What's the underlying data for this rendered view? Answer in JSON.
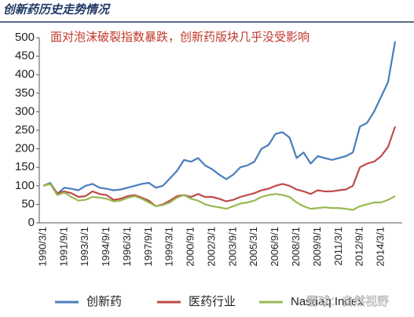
{
  "chart_data": {
    "type": "line",
    "title": "创新药历史走势情况",
    "annotation": "面对泡沫破裂指数暴跌，创新药版块几乎没受影响",
    "watermark": "雪球：自然视野",
    "categories": [
      "1990/3/1",
      null,
      null,
      "1991/9/1",
      null,
      null,
      "1993/3/1",
      null,
      null,
      "1994/9/1",
      null,
      null,
      "1996/3/1",
      null,
      null,
      "1997/9/1",
      null,
      null,
      "1999/3/1",
      null,
      null,
      "2000/9/1",
      null,
      null,
      "2002/3/1",
      null,
      null,
      "2003/9/1",
      null,
      null,
      "2005/3/1",
      null,
      null,
      "2006/9/1",
      null,
      null,
      "2008/3/1",
      null,
      null,
      "2009/9/1",
      null,
      null,
      "2011/3/1",
      null,
      null,
      "2012/9/1",
      null,
      null,
      "2014/3/1",
      null,
      null
    ],
    "series": [
      {
        "name": "创新药",
        "color": "#4a7ebb",
        "values": [
          100,
          108,
          78,
          95,
          92,
          88,
          100,
          105,
          95,
          92,
          88,
          90,
          95,
          100,
          105,
          108,
          95,
          100,
          120,
          140,
          170,
          165,
          175,
          155,
          145,
          130,
          118,
          130,
          150,
          155,
          165,
          200,
          210,
          240,
          245,
          230,
          175,
          190,
          160,
          180,
          175,
          170,
          175,
          180,
          190,
          260,
          270,
          300,
          340,
          380,
          490
        ]
      },
      {
        "name": "医药行业",
        "color": "#be4b48",
        "values": [
          100,
          105,
          80,
          85,
          80,
          70,
          72,
          85,
          78,
          75,
          62,
          65,
          72,
          75,
          68,
          60,
          45,
          50,
          60,
          72,
          75,
          70,
          78,
          70,
          70,
          65,
          58,
          62,
          70,
          75,
          80,
          88,
          92,
          100,
          105,
          100,
          90,
          85,
          78,
          88,
          85,
          85,
          88,
          90,
          100,
          150,
          160,
          165,
          180,
          205,
          260
        ]
      },
      {
        "name": "Nasdaq Index",
        "color": "#98b954",
        "values": [
          100,
          105,
          75,
          82,
          70,
          60,
          62,
          70,
          68,
          65,
          58,
          60,
          68,
          72,
          65,
          55,
          45,
          48,
          55,
          68,
          75,
          65,
          60,
          50,
          45,
          42,
          38,
          45,
          52,
          55,
          60,
          70,
          75,
          78,
          75,
          70,
          55,
          45,
          38,
          40,
          42,
          40,
          40,
          38,
          35,
          45,
          50,
          55,
          55,
          62,
          72
        ]
      }
    ],
    "ylim": [
      0,
      500
    ],
    "yticks": [
      0,
      50,
      100,
      150,
      200,
      250,
      300,
      350,
      400,
      450,
      500
    ]
  }
}
